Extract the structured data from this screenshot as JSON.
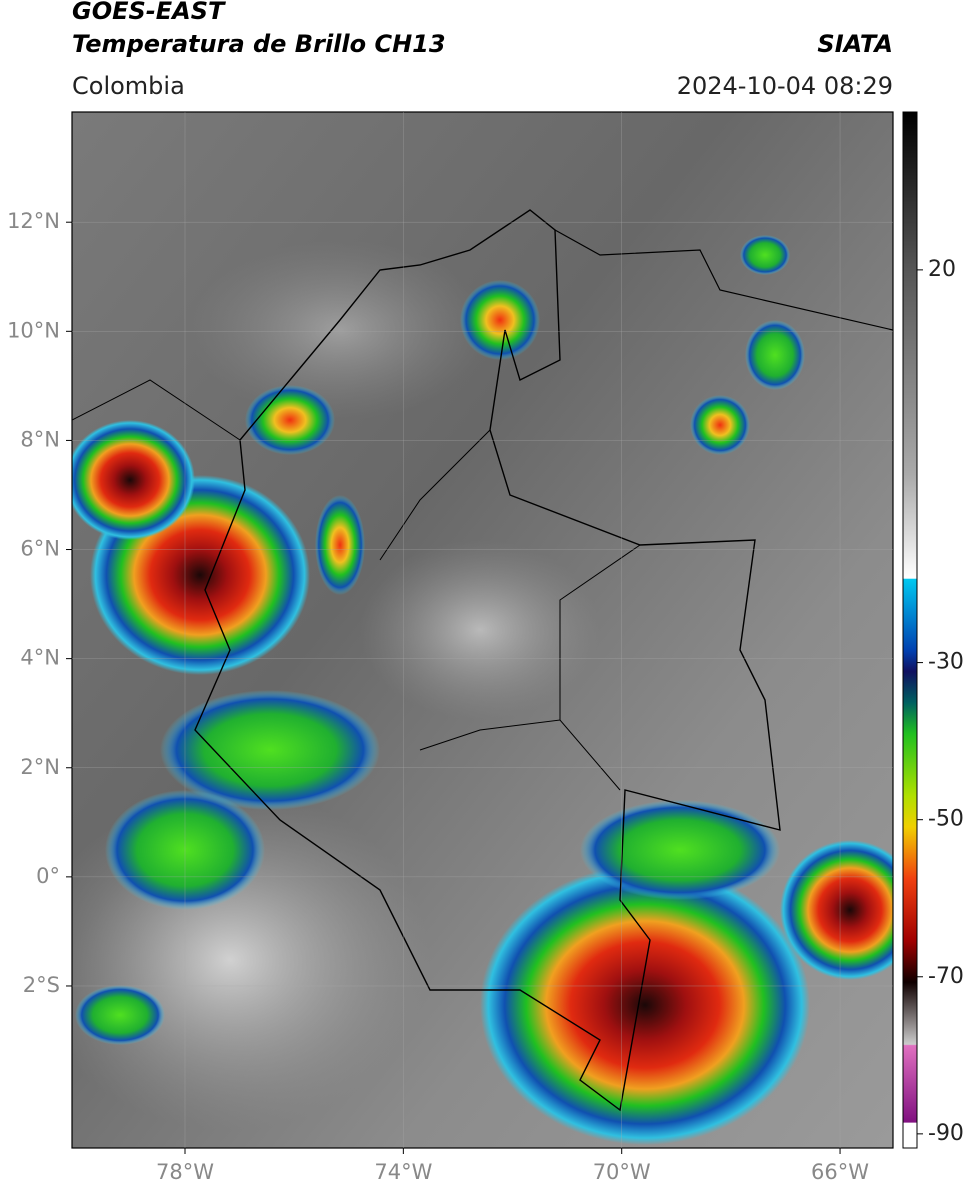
{
  "header": {
    "title": "GOES-EAST",
    "subtitle": "Temperatura de Brillo CH13",
    "source": "SIATA",
    "region": "Colombia",
    "timestamp": "2024-10-04 08:29"
  },
  "map": {
    "lonlim": [
      -80.07,
      -65.03
    ],
    "latlim": [
      -4.97,
      14.02
    ],
    "lonticks": [
      {
        "value": -78,
        "label": "78°W"
      },
      {
        "value": -74,
        "label": "74°W"
      },
      {
        "value": -70,
        "label": "70°W"
      },
      {
        "value": -66,
        "label": "66°W"
      }
    ],
    "latticks": [
      {
        "value": 12,
        "label": "12°N"
      },
      {
        "value": 10,
        "label": "10°N"
      },
      {
        "value": 8,
        "label": "8°N"
      },
      {
        "value": 6,
        "label": "6°N"
      },
      {
        "value": 4,
        "label": "4°N"
      },
      {
        "value": 2,
        "label": "2°N"
      },
      {
        "value": 0,
        "label": "0°"
      },
      {
        "value": -2,
        "label": "2°S"
      }
    ],
    "grid": true
  },
  "colorbar": {
    "lim": [
      -91.8,
      40.1
    ],
    "ticks": [
      20,
      -30,
      -50,
      -70,
      -90
    ]
  }
}
